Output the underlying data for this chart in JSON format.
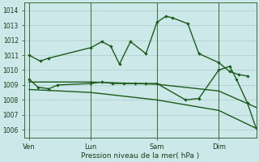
{
  "xlabel": "Pression niveau de la mer( hPa )",
  "background_color": "#cde8e8",
  "grid_color": "#aacccc",
  "line_color": "#1a5c1a",
  "ylim": [
    1005.5,
    1014.5
  ],
  "yticks": [
    1006,
    1007,
    1008,
    1009,
    1010,
    1011,
    1012,
    1013,
    1014
  ],
  "xlim": [
    0,
    10.5
  ],
  "xtick_labels": [
    "Ven",
    "Lun",
    "Sam",
    "Dim"
  ],
  "xtick_positions": [
    0.2,
    3.0,
    6.0,
    8.8
  ],
  "vlines": [
    0.2,
    3.0,
    6.0,
    8.8
  ],
  "s1_x": [
    0.2,
    0.7,
    1.1,
    3.0,
    3.5,
    3.9,
    4.3,
    4.8,
    5.5,
    6.0,
    6.4,
    6.7,
    7.4,
    7.9,
    8.8,
    9.3,
    9.7,
    10.1
  ],
  "s1_y": [
    1011.0,
    1010.6,
    1010.8,
    1011.5,
    1011.9,
    1011.6,
    1010.4,
    1011.9,
    1011.1,
    1013.2,
    1013.6,
    1013.5,
    1013.1,
    1011.1,
    1010.5,
    1009.9,
    1009.7,
    1009.6
  ],
  "s2_x": [
    0.2,
    0.6,
    1.1,
    1.5,
    3.0,
    3.5,
    4.0,
    4.5,
    5.0,
    5.5,
    6.0,
    7.3,
    7.9,
    8.8,
    9.3,
    9.6,
    10.1,
    10.5
  ],
  "s2_y": [
    1009.4,
    1008.85,
    1008.75,
    1009.0,
    1009.1,
    1009.2,
    1009.1,
    1009.1,
    1009.1,
    1009.1,
    1009.1,
    1008.0,
    1008.1,
    1010.0,
    1010.25,
    1009.4,
    1007.8,
    1006.1
  ],
  "s3_x": [
    0.2,
    3.0,
    6.0,
    8.8,
    10.5
  ],
  "s3_y": [
    1009.2,
    1009.2,
    1009.05,
    1008.6,
    1007.5
  ],
  "s4_x": [
    0.2,
    3.0,
    6.0,
    8.8,
    10.5
  ],
  "s4_y": [
    1008.7,
    1008.5,
    1008.0,
    1007.3,
    1006.1
  ]
}
